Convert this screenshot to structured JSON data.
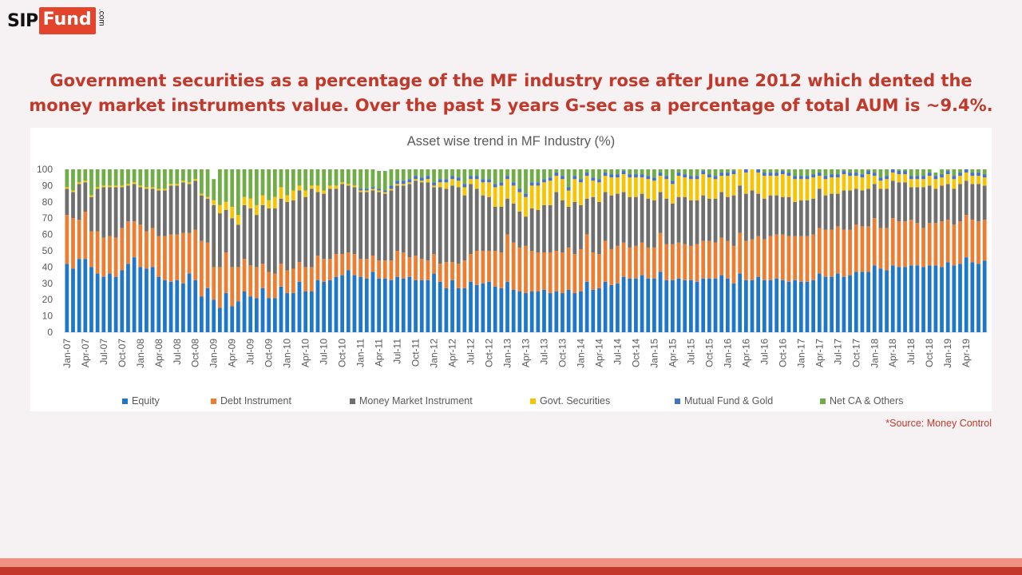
{
  "logo": {
    "sip": "SIP",
    "fund": "Fund",
    "com": ".com",
    "brand_color": "#e2452b"
  },
  "headline": {
    "line1": "Government securities as a percentage of the MF industry rose after June 2012 which dented the",
    "line2": "money market instruments value. Over the past 5 years G-sec as a percentage of total AUM is ~9.4%.",
    "color": "#c0392b"
  },
  "source": "*Source: Money Control",
  "colors": {
    "background": "#f6f1f2",
    "band_light": "#f09283",
    "band_dark": "#c0392b"
  },
  "chart_data": {
    "type": "bar",
    "stacked": true,
    "title": "Asset wise trend in MF Industry (%)",
    "ylim": [
      0,
      100
    ],
    "yticks": [
      0,
      10,
      20,
      30,
      40,
      50,
      60,
      70,
      80,
      90,
      100
    ],
    "grid": false,
    "legend": "bottom",
    "x_tick_labels": [
      "Jan-07",
      "Apr-07",
      "Jul-07",
      "Oct-07",
      "Jan-08",
      "Apr-08",
      "Jul-08",
      "Oct-08",
      "Jan-09",
      "Apr-09",
      "Jul-09",
      "Oct-09",
      "Jan-10",
      "Apr-10",
      "Jul-10",
      "Oct-10",
      "Jan-11",
      "Apr-11",
      "Jul-11",
      "Oct-11",
      "Jan-12",
      "Apr-12",
      "Jul-12",
      "Oct-12",
      "Jan-13",
      "Apr-13",
      "Jul-13",
      "Oct-13",
      "Jan-14",
      "Apr-14",
      "Jul-14",
      "Oct-14",
      "Jan-15",
      "Apr-15",
      "Jul-15",
      "Oct-15",
      "Jan-16",
      "Apr-16",
      "Jul-16",
      "Oct-16",
      "Jan-17",
      "Apr-17",
      "Jul-17",
      "Oct-17",
      "Jan-18",
      "Apr-18",
      "Jul-18",
      "Oct-18",
      "Jan-19",
      "Apr-19"
    ],
    "x_start": "Jan-07",
    "x_end": "Jun-19",
    "series": [
      {
        "name": "Equity",
        "color": "#1f77c9",
        "values": [
          42,
          39,
          45,
          45,
          40,
          36,
          34,
          36,
          34,
          38,
          42,
          46,
          40,
          39,
          40,
          34,
          32,
          31,
          32,
          30,
          36,
          32,
          22,
          27,
          20,
          15,
          24,
          16,
          19,
          25,
          22,
          21,
          27,
          21,
          21,
          28,
          24,
          24,
          31,
          25,
          25,
          32,
          31,
          32,
          34,
          35,
          38,
          35,
          34,
          33,
          37,
          33,
          33,
          32,
          34,
          33,
          34,
          32,
          32,
          32,
          36,
          31,
          27,
          32,
          27,
          27,
          31,
          29,
          30,
          31,
          28,
          27,
          31,
          26,
          25,
          24,
          25,
          25,
          26,
          24,
          25,
          24,
          26,
          24,
          25,
          31,
          26,
          27,
          31,
          29,
          30,
          34,
          33,
          33,
          35,
          33,
          33,
          37,
          32,
          32,
          33,
          32,
          32,
          31,
          33,
          33,
          33,
          35,
          33,
          30,
          36,
          32,
          32,
          34,
          32,
          32,
          33,
          32,
          31,
          32,
          31,
          31,
          32,
          36,
          34,
          34,
          36,
          34,
          35,
          37,
          37,
          37,
          41,
          39,
          38,
          41,
          40,
          40,
          41,
          41,
          40,
          41,
          41,
          40,
          43,
          41,
          42,
          46,
          43,
          42,
          44
        ]
      },
      {
        "name": "Debt Instrument",
        "color": "#ed7d31",
        "values": [
          30,
          31,
          24,
          29,
          22,
          26,
          24,
          23,
          24,
          26,
          26,
          22,
          26,
          23,
          24,
          25,
          27,
          29,
          28,
          31,
          25,
          31,
          34,
          28,
          20,
          25,
          25,
          24,
          21,
          20,
          19,
          19,
          15,
          16,
          15,
          14,
          14,
          15,
          12,
          15,
          15,
          15,
          14,
          13,
          14,
          13,
          11,
          13,
          11,
          12,
          10,
          11,
          11,
          12,
          16,
          16,
          12,
          15,
          13,
          12,
          12,
          11,
          16,
          11,
          15,
          17,
          17,
          21,
          20,
          19,
          22,
          22,
          29,
          29,
          27,
          29,
          25,
          24,
          23,
          25,
          25,
          25,
          26,
          24,
          26,
          29,
          23,
          21,
          25,
          22,
          23,
          21,
          19,
          20,
          20,
          19,
          19,
          24,
          22,
          22,
          22,
          22,
          21,
          23,
          23,
          23,
          22,
          23,
          23,
          23,
          25,
          24,
          25,
          25,
          25,
          27,
          27,
          28,
          28,
          27,
          28,
          28,
          28,
          28,
          29,
          29,
          29,
          29,
          28,
          29,
          28,
          28,
          29,
          25,
          26,
          29,
          28,
          28,
          28,
          26,
          24,
          26,
          26,
          28,
          26,
          25,
          26,
          26,
          26,
          26,
          25
        ]
      },
      {
        "name": "Money Market Instrument",
        "color": "#6f6f6f",
        "values": [
          16,
          16,
          22,
          18,
          21,
          26,
          31,
          30,
          31,
          25,
          22,
          23,
          23,
          26,
          24,
          28,
          28,
          30,
          30,
          31,
          30,
          30,
          28,
          27,
          38,
          33,
          26,
          30,
          26,
          33,
          35,
          32,
          36,
          39,
          40,
          40,
          42,
          42,
          44,
          43,
          48,
          39,
          40,
          43,
          40,
          43,
          41,
          41,
          41,
          41,
          40,
          42,
          41,
          43,
          40,
          41,
          45,
          46,
          47,
          48,
          41,
          47,
          45,
          47,
          47,
          40,
          43,
          38,
          34,
          33,
          27,
          28,
          22,
          24,
          22,
          18,
          26,
          26,
          29,
          29,
          36,
          32,
          25,
          32,
          27,
          22,
          34,
          32,
          30,
          33,
          32,
          31,
          31,
          30,
          30,
          30,
          29,
          25,
          28,
          25,
          28,
          29,
          28,
          27,
          28,
          26,
          27,
          28,
          27,
          31,
          29,
          29,
          30,
          26,
          25,
          25,
          24,
          23,
          24,
          21,
          22,
          22,
          22,
          24,
          21,
          22,
          20,
          24,
          24,
          22,
          22,
          23,
          21,
          24,
          24,
          23,
          24,
          24,
          20,
          22,
          25,
          23,
          21,
          22,
          22,
          22,
          23,
          21,
          22,
          23,
          21
        ]
      },
      {
        "name": "Govt. Securities",
        "color": "#f8c300",
        "values": [
          1,
          1,
          1,
          1,
          1,
          1,
          1,
          1,
          1,
          1,
          1,
          1,
          1,
          1,
          1,
          1,
          1,
          1,
          1,
          1,
          1,
          1,
          1,
          1,
          3,
          5,
          5,
          7,
          6,
          5,
          6,
          6,
          6,
          5,
          7,
          7,
          4,
          6,
          3,
          4,
          2,
          4,
          2,
          2,
          2,
          1,
          1,
          1,
          1,
          1,
          1,
          1,
          1,
          1,
          1,
          1,
          1,
          1,
          1,
          2,
          1,
          3,
          4,
          4,
          4,
          5,
          3,
          6,
          8,
          9,
          12,
          13,
          12,
          11,
          12,
          12,
          14,
          15,
          14,
          15,
          10,
          13,
          10,
          14,
          14,
          14,
          10,
          12,
          10,
          11,
          10,
          11,
          12,
          12,
          10,
          12,
          12,
          10,
          12,
          12,
          13,
          12,
          13,
          13,
          13,
          13,
          12,
          10,
          13,
          13,
          13,
          13,
          13,
          13,
          14,
          12,
          12,
          14,
          13,
          14,
          13,
          13,
          13,
          8,
          10,
          10,
          10,
          10,
          9,
          8,
          8,
          9,
          5,
          5,
          6,
          5,
          5,
          5,
          5,
          5,
          5,
          6,
          6,
          5,
          6,
          6,
          5,
          5,
          5,
          5,
          5
        ]
      },
      {
        "name": "Mutual Fund & Gold",
        "color": "#4472c4",
        "values": [
          0,
          0,
          0,
          0,
          0,
          0,
          0,
          0,
          0,
          0,
          0,
          0,
          0,
          0,
          0,
          0,
          0,
          0,
          0,
          0,
          0,
          0,
          0,
          0,
          0,
          0,
          0,
          0,
          0,
          0,
          0,
          0,
          0,
          0,
          0,
          0,
          0,
          0,
          0,
          0,
          0,
          0,
          0,
          0,
          0,
          0,
          0,
          0,
          1,
          1,
          1,
          1,
          1,
          2,
          2,
          2,
          2,
          2,
          2,
          2,
          2,
          2,
          2,
          2,
          2,
          2,
          2,
          2,
          2,
          2,
          2,
          2,
          2,
          2,
          2,
          2,
          2,
          2,
          2,
          2,
          2,
          2,
          2,
          2,
          2,
          2,
          2,
          2,
          2,
          2,
          2,
          2,
          2,
          2,
          2,
          2,
          2,
          2,
          2,
          2,
          2,
          2,
          2,
          2,
          2,
          2,
          2,
          2,
          2,
          2,
          2,
          2,
          2,
          2,
          2,
          2,
          2,
          2,
          2,
          2,
          2,
          2,
          2,
          2,
          2,
          2,
          2,
          2,
          2,
          2,
          2,
          2,
          2,
          2,
          2,
          2,
          2,
          2,
          2,
          2,
          2,
          2,
          2,
          2,
          2,
          2,
          2,
          2,
          2,
          2,
          2
        ]
      },
      {
        "name": "Net CA & Others",
        "color": "#70ad47",
        "values": [
          11,
          13,
          8,
          7,
          16,
          11,
          10,
          10,
          10,
          10,
          9,
          8,
          10,
          11,
          11,
          12,
          12,
          9,
          9,
          7,
          8,
          6,
          15,
          17,
          13,
          22,
          20,
          23,
          28,
          17,
          18,
          22,
          16,
          19,
          17,
          11,
          16,
          13,
          10,
          13,
          10,
          10,
          13,
          10,
          10,
          8,
          9,
          10,
          12,
          12,
          11,
          11,
          12,
          10,
          7,
          7,
          6,
          4,
          5,
          4,
          8,
          6,
          6,
          4,
          5,
          9,
          4,
          4,
          6,
          6,
          9,
          8,
          4,
          8,
          12,
          15,
          8,
          8,
          6,
          5,
          2,
          4,
          11,
          4,
          6,
          2,
          5,
          6,
          2,
          3,
          3,
          1,
          3,
          3,
          3,
          4,
          5,
          2,
          4,
          7,
          2,
          3,
          4,
          4,
          1,
          3,
          4,
          2,
          2,
          1,
          -5,
          0,
          -2,
          0,
          2,
          2,
          2,
          1,
          2,
          4,
          4,
          4,
          3,
          2,
          4,
          3,
          3,
          1,
          2,
          2,
          3,
          1,
          2,
          5,
          4,
          0,
          1,
          1,
          4,
          4,
          4,
          2,
          2,
          3,
          1,
          4,
          2,
          0,
          2,
          2,
          3
        ]
      }
    ]
  }
}
